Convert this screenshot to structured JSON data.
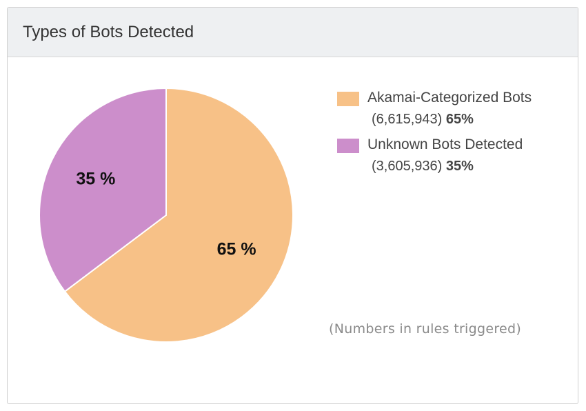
{
  "panel": {
    "title": "Types of Bots Detected"
  },
  "chart_data": {
    "type": "pie",
    "title": "Types of Bots Detected",
    "unit_note": "(Numbers in rules triggered)",
    "legend_position": "right",
    "slices": [
      {
        "name": "Akamai-Categorized Bots",
        "value": 6615943,
        "value_text": "6,615,943",
        "percent": 65,
        "percent_text": "65%",
        "label_text": "65 %",
        "color": "#f7c187"
      },
      {
        "name": "Unknown Bots Detected",
        "value": 3605936,
        "value_text": "3,605,936",
        "percent": 35,
        "percent_text": "35%",
        "label_text": "35 %",
        "color": "#cc8ecb"
      }
    ]
  }
}
